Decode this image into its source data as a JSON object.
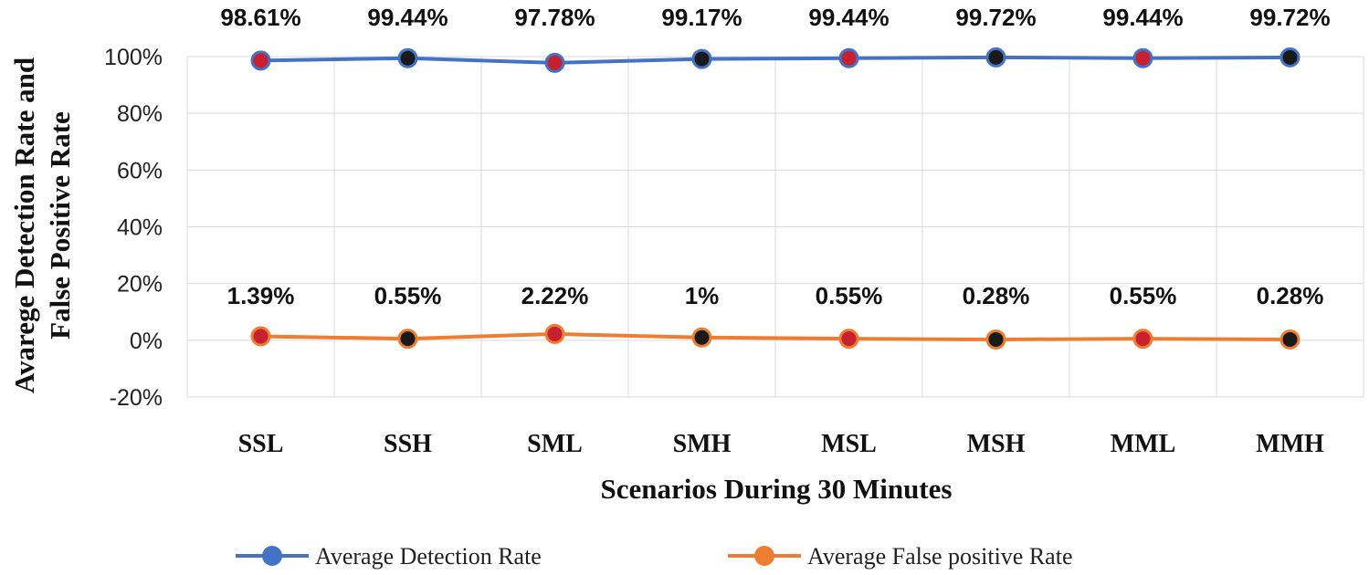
{
  "chart_data": {
    "type": "line",
    "title": "",
    "xlabel": "Scenarios During 30 Minutes",
    "ylabel": [
      "Avarege Detection Rate and",
      "False Positive Rate"
    ],
    "categories": [
      "SSL",
      "SSH",
      "SML",
      "SMH",
      "MSL",
      "MSH",
      "MML",
      "MMH"
    ],
    "ylim": [
      -20,
      100
    ],
    "yticks": [
      100,
      80,
      60,
      40,
      20,
      0,
      -20
    ],
    "ytick_labels": [
      "100%",
      "80%",
      "60%",
      "40%",
      "20%",
      "0%",
      "-20%"
    ],
    "grid": true,
    "legend_position": "bottom",
    "series": [
      {
        "name": "Average Detection  Rate",
        "color": "#4472c4",
        "values": [
          98.61,
          99.44,
          97.78,
          99.17,
          99.44,
          99.72,
          99.44,
          99.72
        ],
        "data_labels": [
          "98.61%",
          "99.44%",
          "97.78%",
          "99.17%",
          "99.44%",
          "99.72%",
          "99.44%",
          "99.72%"
        ],
        "marker_colors": [
          "#c8202f",
          "#1a1a1a",
          "#c8202f",
          "#1a1a1a",
          "#c8202f",
          "#1a1a1a",
          "#c8202f",
          "#1a1a1a"
        ]
      },
      {
        "name": "Average False  positive Rate",
        "color": "#ed7d31",
        "values": [
          1.39,
          0.55,
          2.22,
          1,
          0.55,
          0.28,
          0.55,
          0.28
        ],
        "data_labels": [
          "1.39%",
          "0.55%",
          "2.22%",
          "1%",
          "0.55%",
          "0.28%",
          "0.55%",
          "0.28%"
        ],
        "marker_colors": [
          "#c8202f",
          "#1a1a1a",
          "#c8202f",
          "#1a1a1a",
          "#c8202f",
          "#1a1a1a",
          "#c8202f",
          "#1a1a1a"
        ]
      }
    ]
  }
}
